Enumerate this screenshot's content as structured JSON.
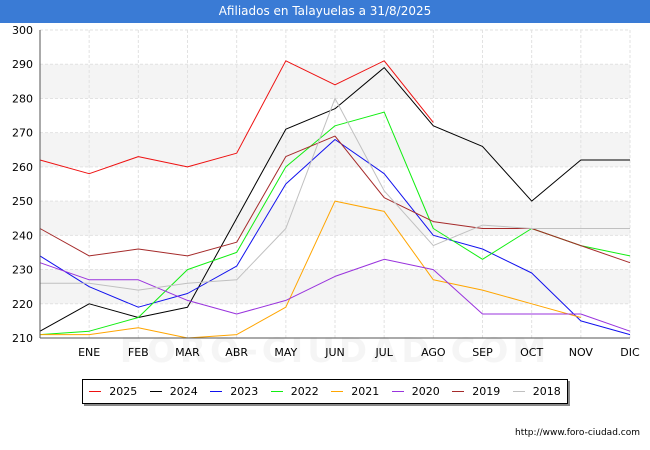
{
  "header": {
    "title": "Afiliados en Talayuelas a 31/8/2025"
  },
  "footer": {
    "url": "http://www.foro-ciudad.com"
  },
  "watermark": "FORO-CIUDAD.COM",
  "chart_data": {
    "type": "line",
    "categories": [
      "",
      "ENE",
      "FEB",
      "MAR",
      "ABR",
      "MAY",
      "JUN",
      "JUL",
      "AGO",
      "SEP",
      "OCT",
      "NOV",
      "DIC"
    ],
    "ylim": [
      210,
      300
    ],
    "yticks": [
      210,
      220,
      230,
      240,
      250,
      260,
      270,
      280,
      290,
      300
    ],
    "grid": true,
    "legend_position": "bottom",
    "series": [
      {
        "name": "2025",
        "color": "#ee1111",
        "values": [
          262,
          258,
          263,
          260,
          264,
          291,
          284,
          291,
          273,
          null,
          null,
          null,
          null
        ]
      },
      {
        "name": "2024",
        "color": "#000000",
        "values": [
          212,
          220,
          216,
          219,
          245,
          271,
          277,
          289,
          272,
          266,
          250,
          262,
          262
        ]
      },
      {
        "name": "2023",
        "color": "#1111ee",
        "values": [
          234,
          225,
          219,
          223,
          231,
          255,
          268,
          258,
          240,
          236,
          229,
          215,
          211
        ]
      },
      {
        "name": "2022",
        "color": "#11ee11",
        "values": [
          211,
          212,
          216,
          230,
          235,
          260,
          272,
          276,
          242,
          233,
          242,
          237,
          234
        ]
      },
      {
        "name": "2021",
        "color": "#ffa500",
        "values": [
          211,
          211,
          213,
          210,
          211,
          219,
          250,
          247,
          227,
          224,
          220,
          216,
          null
        ]
      },
      {
        "name": "2020",
        "color": "#9933dd",
        "values": [
          232,
          227,
          227,
          221,
          217,
          221,
          228,
          233,
          230,
          217,
          217,
          217,
          212
        ]
      },
      {
        "name": "2019",
        "color": "#a52a2a",
        "values": [
          242,
          234,
          236,
          234,
          238,
          263,
          269,
          251,
          244,
          242,
          242,
          237,
          232
        ]
      },
      {
        "name": "2018",
        "color": "#c0c0c0",
        "values": [
          226,
          226,
          224,
          226,
          227,
          242,
          280,
          253,
          237,
          243,
          242,
          242,
          242
        ]
      }
    ]
  }
}
